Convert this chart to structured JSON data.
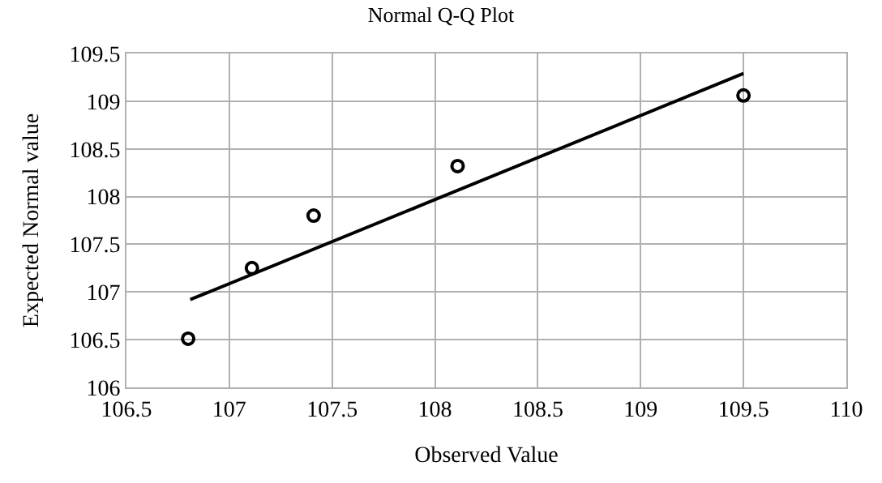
{
  "chart_data": {
    "type": "scatter",
    "title": "Normal Q-Q Plot",
    "xlabel": "Observed Value",
    "ylabel": "Expected Normal value",
    "series": [
      {
        "color": "#000000",
        "marker": "circle",
        "x": [
          106.8,
          107.11,
          107.41,
          108.11,
          109.5
        ],
        "values": [
          106.51,
          107.25,
          107.8,
          108.32,
          109.06
        ]
      },
      {
        "type": "line",
        "color": "#000000",
        "marker": "none",
        "line_style": "solid",
        "x": [
          106.81,
          109.5
        ],
        "values": [
          106.92,
          109.29
        ]
      }
    ],
    "xlim": [
      106.5,
      110
    ],
    "xticks": [
      106.5,
      107,
      107.5,
      108,
      108.5,
      109,
      109.5,
      110
    ],
    "ylim": [
      106,
      109.5
    ],
    "yticks": [
      106,
      106.5,
      107,
      107.5,
      108,
      108.5,
      109,
      109.5
    ],
    "grid": true
  }
}
